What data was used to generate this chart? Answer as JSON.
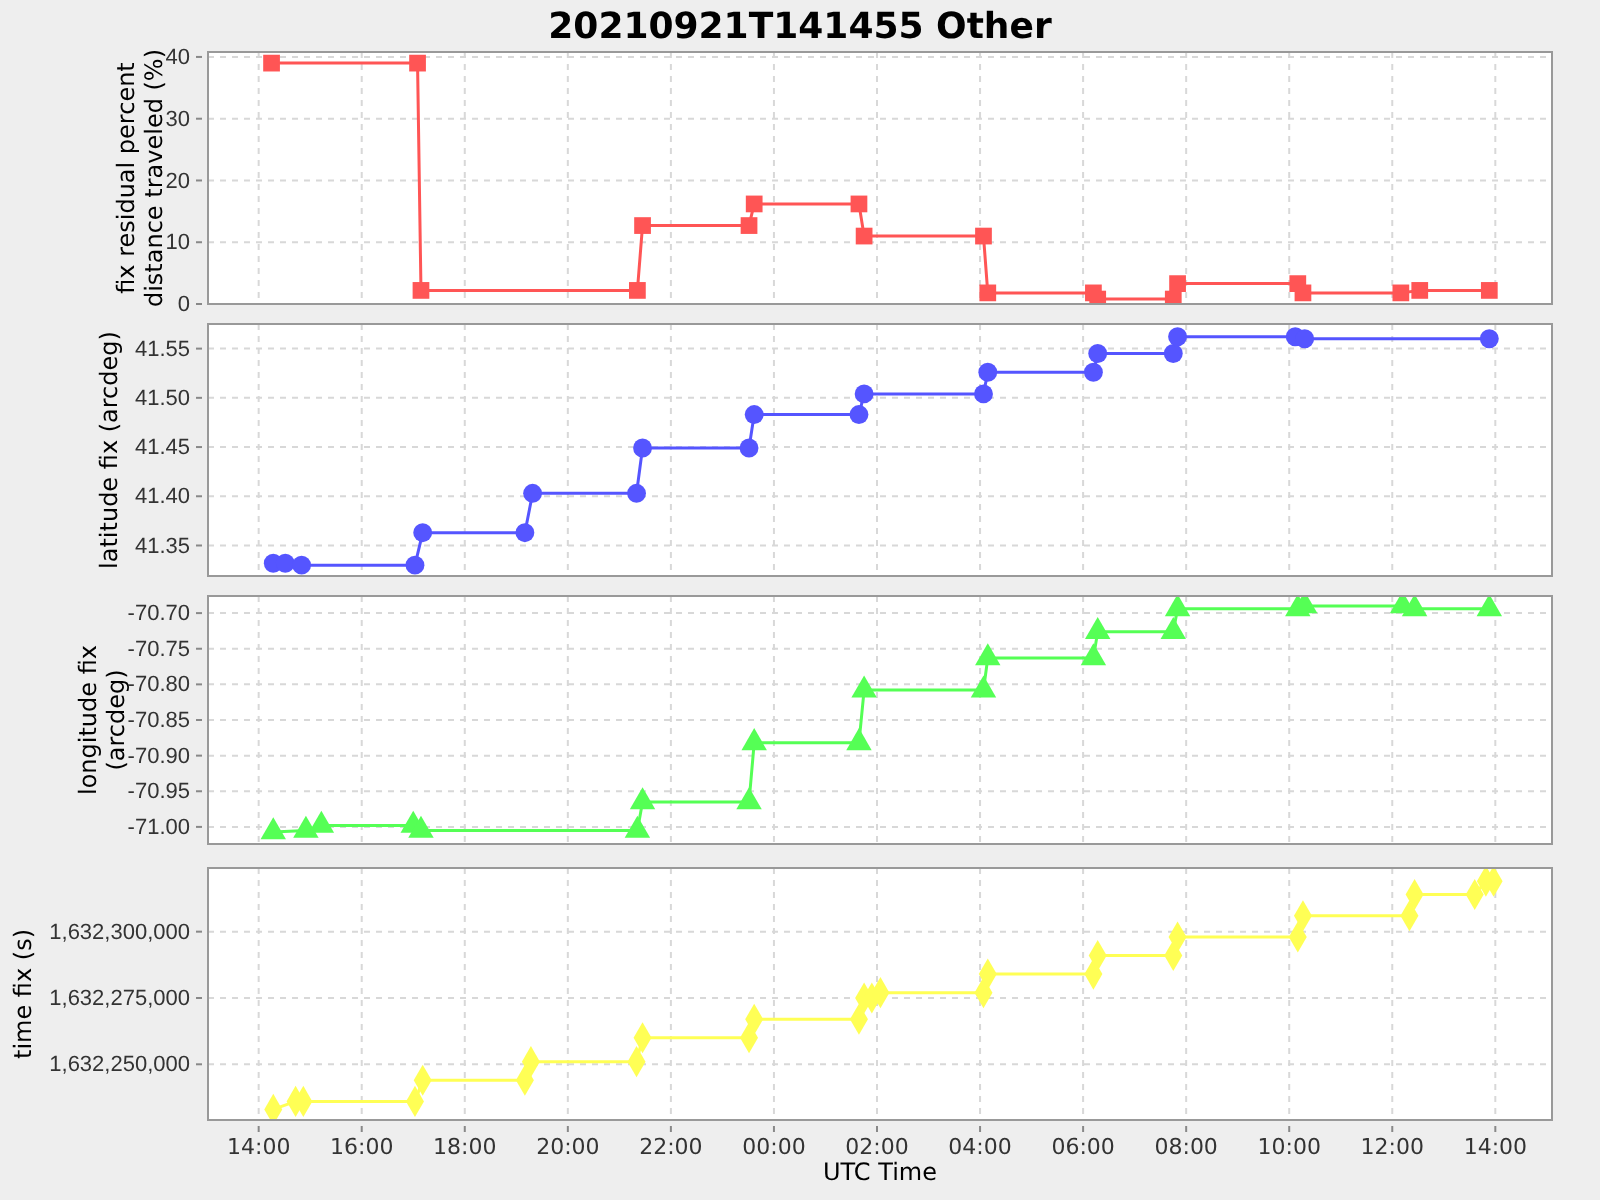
{
  "chart_data": [
    {
      "type": "line",
      "title": "20210921T141455 Other",
      "ylabel": "fix residual percent distance traveled (%)",
      "xlim": [
        "2021-09-21T13:01",
        "2021-09-22T15:06"
      ],
      "ylim": [
        0,
        40.8
      ],
      "yticks": [
        0,
        10,
        20,
        30,
        40
      ],
      "grid": true,
      "tick_labels": "y",
      "marker": "square",
      "line_style": "solid",
      "series": [
        {
          "color": "#ff5555",
          "x": [
            "2021-09-21T14:15",
            "2021-09-21T17:05",
            "2021-09-21T17:09",
            "2021-09-21T21:21",
            "2021-09-21T21:27",
            "2021-09-21T23:31",
            "2021-09-21T23:37",
            "2021-09-22T01:39",
            "2021-09-22T01:45",
            "2021-09-22T04:04",
            "2021-09-22T04:09",
            "2021-09-22T06:12",
            "2021-09-22T06:17",
            "2021-09-22T07:45",
            "2021-09-22T07:50",
            "2021-09-22T10:10",
            "2021-09-22T10:16",
            "2021-09-22T12:10",
            "2021-09-22T12:32",
            "2021-09-22T13:53"
          ],
          "values": [
            39,
            39,
            2.2,
            2.2,
            12.7,
            12.7,
            16.2,
            16.2,
            11,
            11,
            1.8,
            1.8,
            0.8,
            0.8,
            3.3,
            3.3,
            1.8,
            1.8,
            2.2,
            2.2
          ]
        }
      ]
    },
    {
      "type": "line",
      "ylabel": "latitude fix (arcdeg)",
      "xlim": [
        "2021-09-21T13:01",
        "2021-09-22T15:06"
      ],
      "ylim": [
        41.319,
        41.575
      ],
      "yticks": [
        {
          "value": 41.35,
          "label": "41.35"
        },
        {
          "value": 41.4,
          "label": "41.40"
        },
        {
          "value": 41.45,
          "label": "41.45"
        },
        {
          "value": 41.5,
          "label": "41.50"
        },
        {
          "value": 41.55,
          "label": "41.55"
        }
      ],
      "grid": true,
      "tick_labels": "y",
      "marker": "circle",
      "line_style": "solid",
      "series": [
        {
          "color": "#5555ff",
          "x": [
            "2021-09-21T14:17",
            "2021-09-21T14:31",
            "2021-09-21T14:50",
            "2021-09-21T17:02",
            "2021-09-21T17:11",
            "2021-09-21T19:10",
            "2021-09-21T19:19",
            "2021-09-21T21:20",
            "2021-09-21T21:27",
            "2021-09-21T23:31",
            "2021-09-21T23:37",
            "2021-09-22T01:39",
            "2021-09-22T01:45",
            "2021-09-22T04:04",
            "2021-09-22T04:09",
            "2021-09-22T06:12",
            "2021-09-22T06:17",
            "2021-09-22T07:45",
            "2021-09-22T07:50",
            "2021-09-22T10:07",
            "2021-09-22T10:18",
            "2021-09-22T13:53"
          ],
          "values": [
            41.332,
            41.332,
            41.33,
            41.33,
            41.363,
            41.363,
            41.403,
            41.403,
            41.449,
            41.449,
            41.483,
            41.483,
            41.504,
            41.504,
            41.526,
            41.526,
            41.545,
            41.545,
            41.562,
            41.562,
            41.56,
            41.56
          ]
        }
      ]
    },
    {
      "type": "line",
      "ylabel": "longitude fix (arcdeg)",
      "xlim": [
        "2021-09-21T13:01",
        "2021-09-22T15:06"
      ],
      "ylim": [
        -71.024,
        -70.676
      ],
      "yticks": [
        {
          "value": -71,
          "label": "-71.00"
        },
        {
          "value": -70.95,
          "label": "-70.95"
        },
        {
          "value": -70.9,
          "label": "-70.90"
        },
        {
          "value": -70.85,
          "label": "-70.85"
        },
        {
          "value": -70.8,
          "label": "-70.80"
        },
        {
          "value": -70.75,
          "label": "-70.75"
        },
        {
          "value": -70.7,
          "label": "-70.70"
        }
      ],
      "grid": true,
      "tick_labels": "y",
      "marker": "triangle",
      "line_style": "solid",
      "series": [
        {
          "color": "#55ff55",
          "x": [
            "2021-09-21T14:17",
            "2021-09-21T14:55",
            "2021-09-21T15:13",
            "2021-09-21T17:00",
            "2021-09-21T17:09",
            "2021-09-21T21:21",
            "2021-09-21T21:27",
            "2021-09-21T23:31",
            "2021-09-21T23:37",
            "2021-09-22T01:39",
            "2021-09-22T01:45",
            "2021-09-22T04:04",
            "2021-09-22T04:09",
            "2021-09-22T06:12",
            "2021-09-22T06:17",
            "2021-09-22T07:45",
            "2021-09-22T07:50",
            "2021-09-22T10:10",
            "2021-09-22T10:18",
            "2021-09-22T12:12",
            "2021-09-22T12:26",
            "2021-09-22T13:53"
          ],
          "values": [
            -71.007,
            -71.005,
            -70.998,
            -70.998,
            -71.005,
            -71.005,
            -70.965,
            -70.965,
            -70.882,
            -70.882,
            -70.808,
            -70.808,
            -70.763,
            -70.763,
            -70.726,
            -70.726,
            -70.694,
            -70.694,
            -70.69,
            -70.69,
            -70.694,
            -70.694
          ]
        }
      ]
    },
    {
      "type": "line",
      "ylabel": "time fix (s)",
      "xlabel": "UTC Time",
      "xlim": [
        "2021-09-21T13:01",
        "2021-09-22T15:06"
      ],
      "xticks": [
        {
          "value": "2021-09-21T14:00",
          "label": "14:00"
        },
        {
          "value": "2021-09-21T16:00",
          "label": "16:00"
        },
        {
          "value": "2021-09-21T18:00",
          "label": "18:00"
        },
        {
          "value": "2021-09-21T20:00",
          "label": "20:00"
        },
        {
          "value": "2021-09-21T22:00",
          "label": "22:00"
        },
        {
          "value": "2021-09-22T00:00",
          "label": "00:00"
        },
        {
          "value": "2021-09-22T02:00",
          "label": "02:00"
        },
        {
          "value": "2021-09-22T04:00",
          "label": "04:00"
        },
        {
          "value": "2021-09-22T06:00",
          "label": "06:00"
        },
        {
          "value": "2021-09-22T08:00",
          "label": "08:00"
        },
        {
          "value": "2021-09-22T10:00",
          "label": "10:00"
        },
        {
          "value": "2021-09-22T12:00",
          "label": "12:00"
        },
        {
          "value": "2021-09-22T14:00",
          "label": "14:00"
        }
      ],
      "ylim": [
        1632229000,
        1632324000
      ],
      "yticks": [
        {
          "value": 1632250000,
          "label": "1,632,250,000"
        },
        {
          "value": 1632275000,
          "label": "1,632,275,000"
        },
        {
          "value": 1632300000,
          "label": "1,632,300,000"
        }
      ],
      "grid": true,
      "marker": "diamond",
      "line_style": "solid",
      "series": [
        {
          "color": "#ffff55",
          "x": [
            "2021-09-21T14:17",
            "2021-09-21T14:43",
            "2021-09-21T14:52",
            "2021-09-21T17:02",
            "2021-09-21T17:11",
            "2021-09-21T19:10",
            "2021-09-21T19:17",
            "2021-09-21T21:20",
            "2021-09-21T21:27",
            "2021-09-21T23:31",
            "2021-09-21T23:37",
            "2021-09-22T01:39",
            "2021-09-22T01:45",
            "2021-09-22T01:54",
            "2021-09-22T02:04",
            "2021-09-22T04:04",
            "2021-09-22T04:09",
            "2021-09-22T06:12",
            "2021-09-22T06:17",
            "2021-09-22T07:45",
            "2021-09-22T07:50",
            "2021-09-22T10:10",
            "2021-09-22T10:16",
            "2021-09-22T12:20",
            "2021-09-22T12:26",
            "2021-09-22T13:36",
            "2021-09-22T13:49",
            "2021-09-22T13:58"
          ],
          "values": [
            1632233000,
            1632236000,
            1632236000,
            1632236000,
            1632244000,
            1632244000,
            1632251000,
            1632251000,
            1632260000,
            1632260000,
            1632267000,
            1632267000,
            1632275000,
            1632275000,
            1632277000,
            1632277000,
            1632284000,
            1632284000,
            1632291000,
            1632291000,
            1632298000,
            1632298000,
            1632306000,
            1632306000,
            1632314000,
            1632314000,
            1632319000,
            1632319000
          ]
        }
      ]
    }
  ]
}
